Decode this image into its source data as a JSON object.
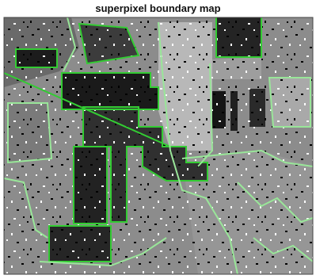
{
  "title": "superpixel boundary map"
}
